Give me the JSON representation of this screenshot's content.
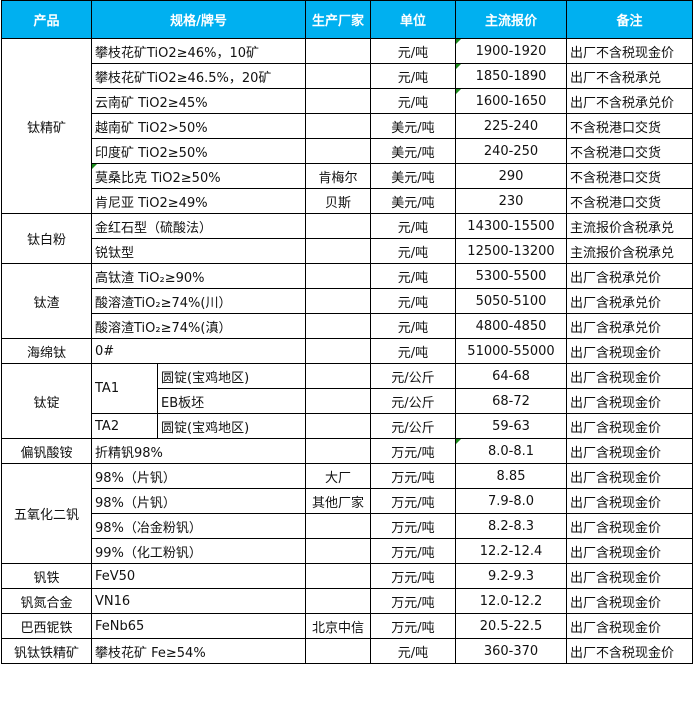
{
  "headers": [
    "产品",
    "规格/牌号",
    "生产厂家",
    "单位",
    "主流报价",
    "备注"
  ],
  "colors": {
    "header_bg": "#00B0F0",
    "header_text": "#FFFFFF",
    "comment_marker": "#1A8A1A"
  },
  "groups": [
    {
      "product": "钛精矿",
      "rows": [
        {
          "spec": "攀枝花矿TiO2≥46%，10矿",
          "maker": "",
          "unit": "元/吨",
          "price": "1900-1920",
          "note": "出厂不含税现金价",
          "price_mark": true
        },
        {
          "spec": "攀枝花矿TiO2≥46.5%，20矿",
          "maker": "",
          "unit": "元/吨",
          "price": "1850-1890",
          "note": "出厂不含税承兑",
          "price_mark": true
        },
        {
          "spec": "云南矿 TiO2≥45%",
          "maker": "",
          "unit": "元/吨",
          "price": "1600-1650",
          "note": "出厂不含税承兑价",
          "price_mark": true
        },
        {
          "spec": "越南矿 TiO2>50%",
          "maker": "",
          "unit": "美元/吨",
          "price": "225-240",
          "note": "不含税港口交货"
        },
        {
          "spec": "印度矿 TiO2≥50%",
          "maker": "",
          "unit": "美元/吨",
          "price": "240-250",
          "note": "不含税港口交货"
        },
        {
          "spec": "莫桑比克 TiO2≥50%",
          "maker": "肯梅尔",
          "unit": "美元/吨",
          "price": "290",
          "note": "不含税港口交货",
          "spec_mark": true
        },
        {
          "spec": "肯尼亚 TiO2≥49%",
          "maker": "贝斯",
          "unit": "美元/吨",
          "price": "230",
          "note": "不含税港口交货"
        }
      ]
    },
    {
      "product": "钛白粉",
      "rows": [
        {
          "spec": "金红石型（硫酸法）",
          "maker": "",
          "unit": "元/吨",
          "price": "14300-15500",
          "note": "主流报价含税承兑"
        },
        {
          "spec": "锐钛型",
          "maker": "",
          "unit": "元/吨",
          "price": "12500-13200",
          "note": "主流报价含税承兑"
        }
      ]
    },
    {
      "product": "钛渣",
      "rows": [
        {
          "spec": "高钛渣 TiO₂≥90%",
          "maker": "",
          "unit": "元/吨",
          "price": "5300-5500",
          "note": "出厂含税承兑价"
        },
        {
          "spec": "酸溶渣TiO₂≥74%(川）",
          "maker": "",
          "unit": "元/吨",
          "price": "5050-5100",
          "note": "出厂含税承兑价"
        },
        {
          "spec": "酸溶渣TiO₂≥74%(滇）",
          "maker": "",
          "unit": "元/吨",
          "price": "4800-4850",
          "note": "出厂含税承兑价"
        }
      ]
    },
    {
      "product": "海绵钛",
      "rows": [
        {
          "spec": "0#",
          "maker": "",
          "unit": "元/吨",
          "price": "51000-55000",
          "note": "出厂含税现金价"
        }
      ]
    },
    {
      "product": "钛锭",
      "rows": [
        {
          "grade": "TA1",
          "grade_span": 2,
          "spec": "圆锭(宝鸡地区)",
          "maker": "",
          "unit": "元/公斤",
          "price": "64-68",
          "note": "出厂含税现金价"
        },
        {
          "spec": "EB板坯",
          "maker": "",
          "unit": "元/公斤",
          "price": "68-72",
          "note": "出厂含税现金价"
        },
        {
          "grade": "TA2",
          "grade_span": 1,
          "spec": "圆锭(宝鸡地区)",
          "maker": "",
          "unit": "元/公斤",
          "price": "59-63",
          "note": "出厂含税现金价"
        }
      ]
    },
    {
      "product": "偏钒酸铵",
      "rows": [
        {
          "spec": "折精钒98%",
          "maker": "",
          "unit": "万元/吨",
          "price": "8.0-8.1",
          "note": "出厂含税现金价",
          "price_mark": true
        }
      ]
    },
    {
      "product": "五氧化二钒",
      "rows": [
        {
          "spec": "98%（片钒）",
          "maker": "大厂",
          "unit": "万元/吨",
          "price": "8.85",
          "note": "出厂含税现金价"
        },
        {
          "spec": "98%（片钒）",
          "maker": "其他厂家",
          "unit": "万元/吨",
          "price": "7.9-8.0",
          "note": "出厂含税现金价"
        },
        {
          "spec": "98%（冶金粉钒）",
          "maker": "",
          "unit": "万元/吨",
          "price": "8.2-8.3",
          "note": "出厂含税现金价"
        },
        {
          "spec": "99%（化工粉钒）",
          "maker": "",
          "unit": "万元/吨",
          "price": "12.2-12.4",
          "note": "出厂含税现金价"
        }
      ]
    },
    {
      "product": "钒铁",
      "rows": [
        {
          "spec": "FeV50",
          "maker": "",
          "unit": "万元/吨",
          "price": "9.2-9.3",
          "note": "出厂含税现金价"
        }
      ]
    },
    {
      "product": "钒氮合金",
      "rows": [
        {
          "spec": "VN16",
          "maker": "",
          "unit": "万元/吨",
          "price": "12.0-12.2",
          "note": "出厂含税现金价"
        }
      ]
    },
    {
      "product": "巴西铌铁",
      "rows": [
        {
          "spec": "FeNb65",
          "maker": "北京中信",
          "unit": "万元/吨",
          "price": "20.5-22.5",
          "note": "出厂含税现金价"
        }
      ]
    },
    {
      "product": "钒钛铁精矿",
      "rows": [
        {
          "spec": "攀枝花矿 Fe≥54%",
          "maker": "",
          "unit": "元/吨",
          "price": "360-370",
          "note": "出厂不含税现金价"
        }
      ]
    }
  ]
}
